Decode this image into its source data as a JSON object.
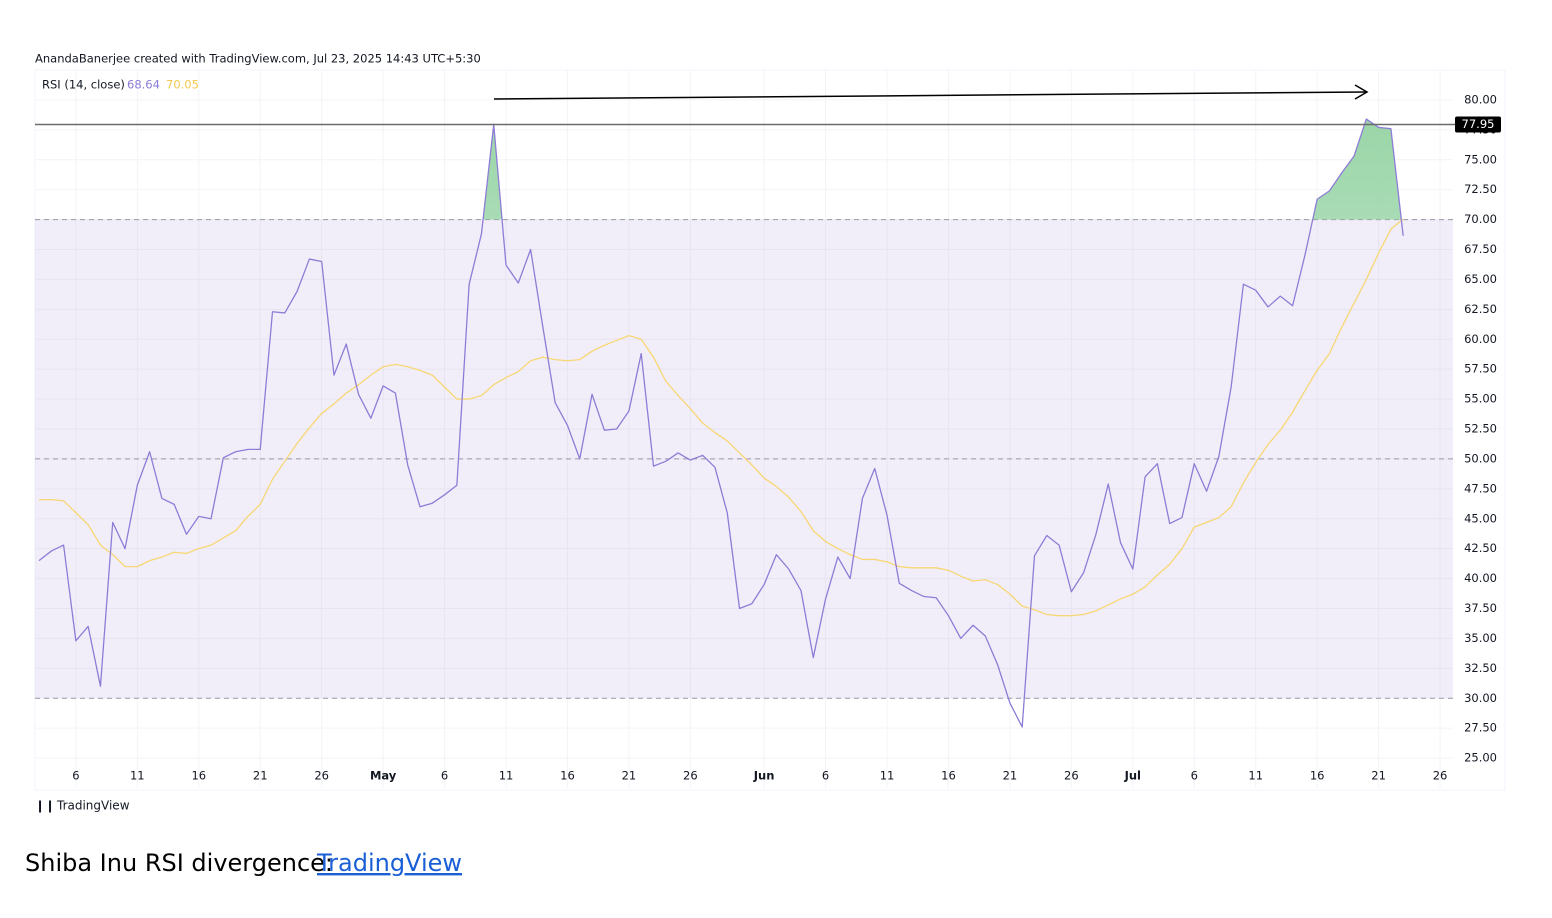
{
  "header": "AnandaBanerjee created with TradingView.com, Jul 23, 2025 14:43 UTC+5:30",
  "footer_logo": "TradingView",
  "caption": {
    "text": "Shiba Inu RSI divergence: ",
    "link": "TradingView"
  },
  "chart_data": {
    "type": "line",
    "legend_label": "RSI (14, close)",
    "categories": [
      null,
      null,
      null,
      "6",
      null,
      null,
      null,
      null,
      "11",
      null,
      null,
      null,
      null,
      "16",
      null,
      null,
      null,
      null,
      "21",
      null,
      null,
      null,
      null,
      "26",
      null,
      null,
      null,
      null,
      "May",
      null,
      null,
      null,
      null,
      "6",
      null,
      null,
      null,
      null,
      "11",
      null,
      null,
      null,
      null,
      "16",
      null,
      null,
      null,
      null,
      "21",
      null,
      null,
      null,
      null,
      "26",
      null,
      null,
      null,
      null,
      null,
      "Jun",
      null,
      null,
      null,
      null,
      "6",
      null,
      null,
      null,
      null,
      "11",
      null,
      null,
      null,
      null,
      "16",
      null,
      null,
      null,
      null,
      "21",
      null,
      null,
      null,
      null,
      "26",
      null,
      null,
      null,
      null,
      "Jul",
      null,
      null,
      null,
      null,
      "6",
      null,
      null,
      null,
      null,
      "11",
      null,
      null,
      null,
      null,
      "16",
      null,
      null,
      null,
      null,
      "21",
      null,
      null,
      null,
      null,
      "26",
      null
    ],
    "series": [
      {
        "color": "#8e7cd6",
        "values": [
          41.5,
          42.3,
          42.8,
          34.8,
          36.0,
          31.0,
          44.7,
          42.5,
          47.8,
          50.6,
          46.7,
          46.2,
          43.7,
          45.2,
          45.0,
          50.1,
          50.6,
          50.8,
          50.8,
          62.3,
          62.2,
          64.0,
          66.7,
          66.5,
          57.0,
          59.6,
          55.4,
          53.4,
          56.1,
          55.5,
          49.5,
          46.0,
          46.3,
          47.0,
          47.8,
          64.6,
          68.8,
          77.95,
          66.2,
          64.7,
          67.5,
          61.0,
          54.7,
          52.8,
          50.0,
          55.4,
          52.4,
          52.5,
          54.0,
          58.8,
          49.4,
          49.8,
          50.5,
          49.9,
          50.3,
          49.3,
          45.5,
          37.5,
          37.9,
          39.5,
          42.0,
          40.8,
          39.0,
          33.4,
          38.3,
          41.8,
          40.0,
          46.7,
          49.2,
          45.3,
          39.6,
          39.0,
          38.5,
          38.4,
          36.9,
          35.0,
          36.1,
          35.2,
          32.8,
          29.6,
          27.6,
          41.9,
          43.6,
          42.8,
          38.9,
          40.5,
          43.7,
          47.9,
          43.0,
          40.8,
          48.5,
          49.6,
          44.6,
          45.1,
          49.6,
          47.3,
          50.2,
          56.0,
          64.6,
          64.1,
          62.7,
          63.6,
          62.8,
          67.0,
          71.7,
          72.4,
          73.9,
          75.3,
          78.4,
          77.7,
          77.6,
          68.64,
          null,
          null,
          null,
          null
        ]
      },
      {
        "color": "#f7d774",
        "values": [
          46.6,
          46.6,
          46.5,
          45.5,
          44.5,
          42.8,
          42.0,
          41.0,
          41.0,
          41.5,
          41.8,
          42.2,
          42.1,
          42.5,
          42.8,
          43.4,
          44.0,
          45.2,
          46.2,
          48.3,
          49.8,
          51.3,
          52.6,
          53.8,
          54.6,
          55.5,
          56.2,
          57.0,
          57.7,
          57.9,
          57.7,
          57.4,
          57.0,
          56.0,
          55.0,
          55.0,
          55.3,
          56.2,
          56.8,
          57.3,
          58.2,
          58.5,
          58.3,
          58.2,
          58.3,
          59.0,
          59.5,
          59.9,
          60.3,
          60.0,
          58.5,
          56.5,
          55.3,
          54.2,
          53.0,
          52.2,
          51.5,
          50.5,
          49.5,
          48.4,
          47.7,
          46.8,
          45.6,
          44.0,
          43.1,
          42.5,
          42.0,
          41.6,
          41.6,
          41.4,
          41.0,
          40.9,
          40.9,
          40.9,
          40.7,
          40.2,
          39.8,
          39.9,
          39.5,
          38.7,
          37.7,
          37.4,
          37.0,
          36.9,
          36.9,
          37.0,
          37.3,
          37.8,
          38.3,
          38.7,
          39.3,
          40.3,
          41.2,
          42.5,
          44.3,
          44.7,
          45.1,
          46.0,
          48.0,
          49.7,
          51.2,
          52.4,
          53.9,
          55.7,
          57.4,
          58.8,
          61.0,
          63.0,
          65.0,
          67.2,
          69.2,
          70.05,
          null,
          null,
          null,
          null
        ]
      }
    ],
    "ylim": [
      22.5,
      82.5
    ],
    "yticks": [
      {
        "value": 25,
        "label": "25.00"
      },
      {
        "value": 27.5,
        "label": "27.50"
      },
      {
        "value": 30,
        "label": "30.00"
      },
      {
        "value": 32.5,
        "label": "32.50"
      },
      {
        "value": 35,
        "label": "35.00"
      },
      {
        "value": 37.5,
        "label": "37.50"
      },
      {
        "value": 40,
        "label": "40.00"
      },
      {
        "value": 42.5,
        "label": "42.50"
      },
      {
        "value": 45,
        "label": "45.00"
      },
      {
        "value": 47.5,
        "label": "47.50"
      },
      {
        "value": 50,
        "label": "50.00"
      },
      {
        "value": 52.5,
        "label": "52.50"
      },
      {
        "value": 55,
        "label": "55.00"
      },
      {
        "value": 57.5,
        "label": "57.50"
      },
      {
        "value": 60,
        "label": "60.00"
      },
      {
        "value": 62.5,
        "label": "62.50"
      },
      {
        "value": 65,
        "label": "65.00"
      },
      {
        "value": 67.5,
        "label": "67.50"
      },
      {
        "value": 70,
        "label": "70.00"
      },
      {
        "value": 72.5,
        "label": "72.50"
      },
      {
        "value": 75,
        "label": "75.00"
      },
      {
        "value": 77.5,
        "label": "77.50"
      },
      {
        "value": 80,
        "label": "80.00"
      }
    ],
    "bands": {
      "upper": 70,
      "middle": 50,
      "lower": 30
    },
    "price_line_index": 37,
    "grid": true
  }
}
